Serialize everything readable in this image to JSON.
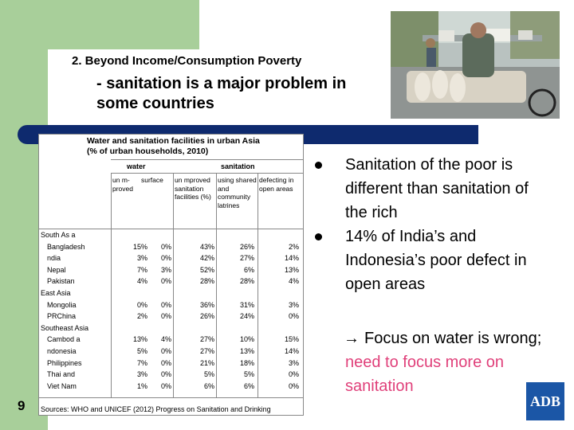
{
  "slide": {
    "heading_line1": "2. Beyond Income/Consumption Poverty",
    "heading_line2": "- sanitation is a major problem in some countries",
    "slide_number": "9",
    "logo_text": "ADB",
    "colors": {
      "green": "#a8cf9a",
      "navy": "#0e2a6e",
      "pink": "#e0407a",
      "adb_blue": "#1b56a6"
    }
  },
  "table": {
    "title_line1": "Water and sanitation facilities in urban Asia",
    "title_line2": "(% of urban households, 2010)",
    "group_water": "water",
    "group_sanitation": "sanitation",
    "col_water_1": "un m- proved",
    "col_water_2": "surface",
    "col_san_1": "un mproved sanitation facilities (%)",
    "col_san_2": "using shared and community latrines",
    "col_san_3": "defecting in open areas",
    "source": "Sources: WHO and UNICEF (2012) Progress on Sanitation and Drinking",
    "rows": [
      {
        "name": "South As a",
        "region": true,
        "v": [
          "",
          "",
          "",
          "",
          ""
        ]
      },
      {
        "name": "Bangladesh",
        "region": false,
        "v": [
          "15%",
          "0%",
          "43%",
          "26%",
          "2%"
        ]
      },
      {
        "name": "ndia",
        "region": false,
        "v": [
          "3%",
          "0%",
          "42%",
          "27%",
          "14%"
        ]
      },
      {
        "name": "Nepal",
        "region": false,
        "v": [
          "7%",
          "3%",
          "52%",
          "6%",
          "13%"
        ]
      },
      {
        "name": "Pakistan",
        "region": false,
        "v": [
          "4%",
          "0%",
          "28%",
          "28%",
          "4%"
        ]
      },
      {
        "name": "East Asia",
        "region": true,
        "v": [
          "",
          "",
          "",
          "",
          ""
        ]
      },
      {
        "name": "Mongolia",
        "region": false,
        "v": [
          "0%",
          "0%",
          "36%",
          "31%",
          "3%"
        ]
      },
      {
        "name": "PRChina",
        "region": false,
        "v": [
          "2%",
          "0%",
          "26%",
          "24%",
          "0%"
        ]
      },
      {
        "name": "Southeast Asia",
        "region": true,
        "v": [
          "",
          "",
          "",
          "",
          ""
        ]
      },
      {
        "name": "Cambod a",
        "region": false,
        "v": [
          "13%",
          "4%",
          "27%",
          "10%",
          "15%"
        ]
      },
      {
        "name": "ndonesia",
        "region": false,
        "v": [
          "5%",
          "0%",
          "27%",
          "13%",
          "14%"
        ]
      },
      {
        "name": "Philippines",
        "region": false,
        "v": [
          "7%",
          "0%",
          "21%",
          "18%",
          "3%"
        ]
      },
      {
        "name": "Thai and",
        "region": false,
        "v": [
          "3%",
          "0%",
          "5%",
          "5%",
          "0%"
        ]
      },
      {
        "name": "Viet Nam",
        "region": false,
        "v": [
          "1%",
          "0%",
          "6%",
          "6%",
          "0%"
        ]
      }
    ]
  },
  "bullets": {
    "b1": "Sanitation of the poor is different than sanitation of the rich",
    "b2": "14% of India’s and Indonesia’s poor defect in open areas",
    "b3_plain": "Focus on water is wrong; ",
    "b3_pink": "need to focus more on sanitation"
  }
}
